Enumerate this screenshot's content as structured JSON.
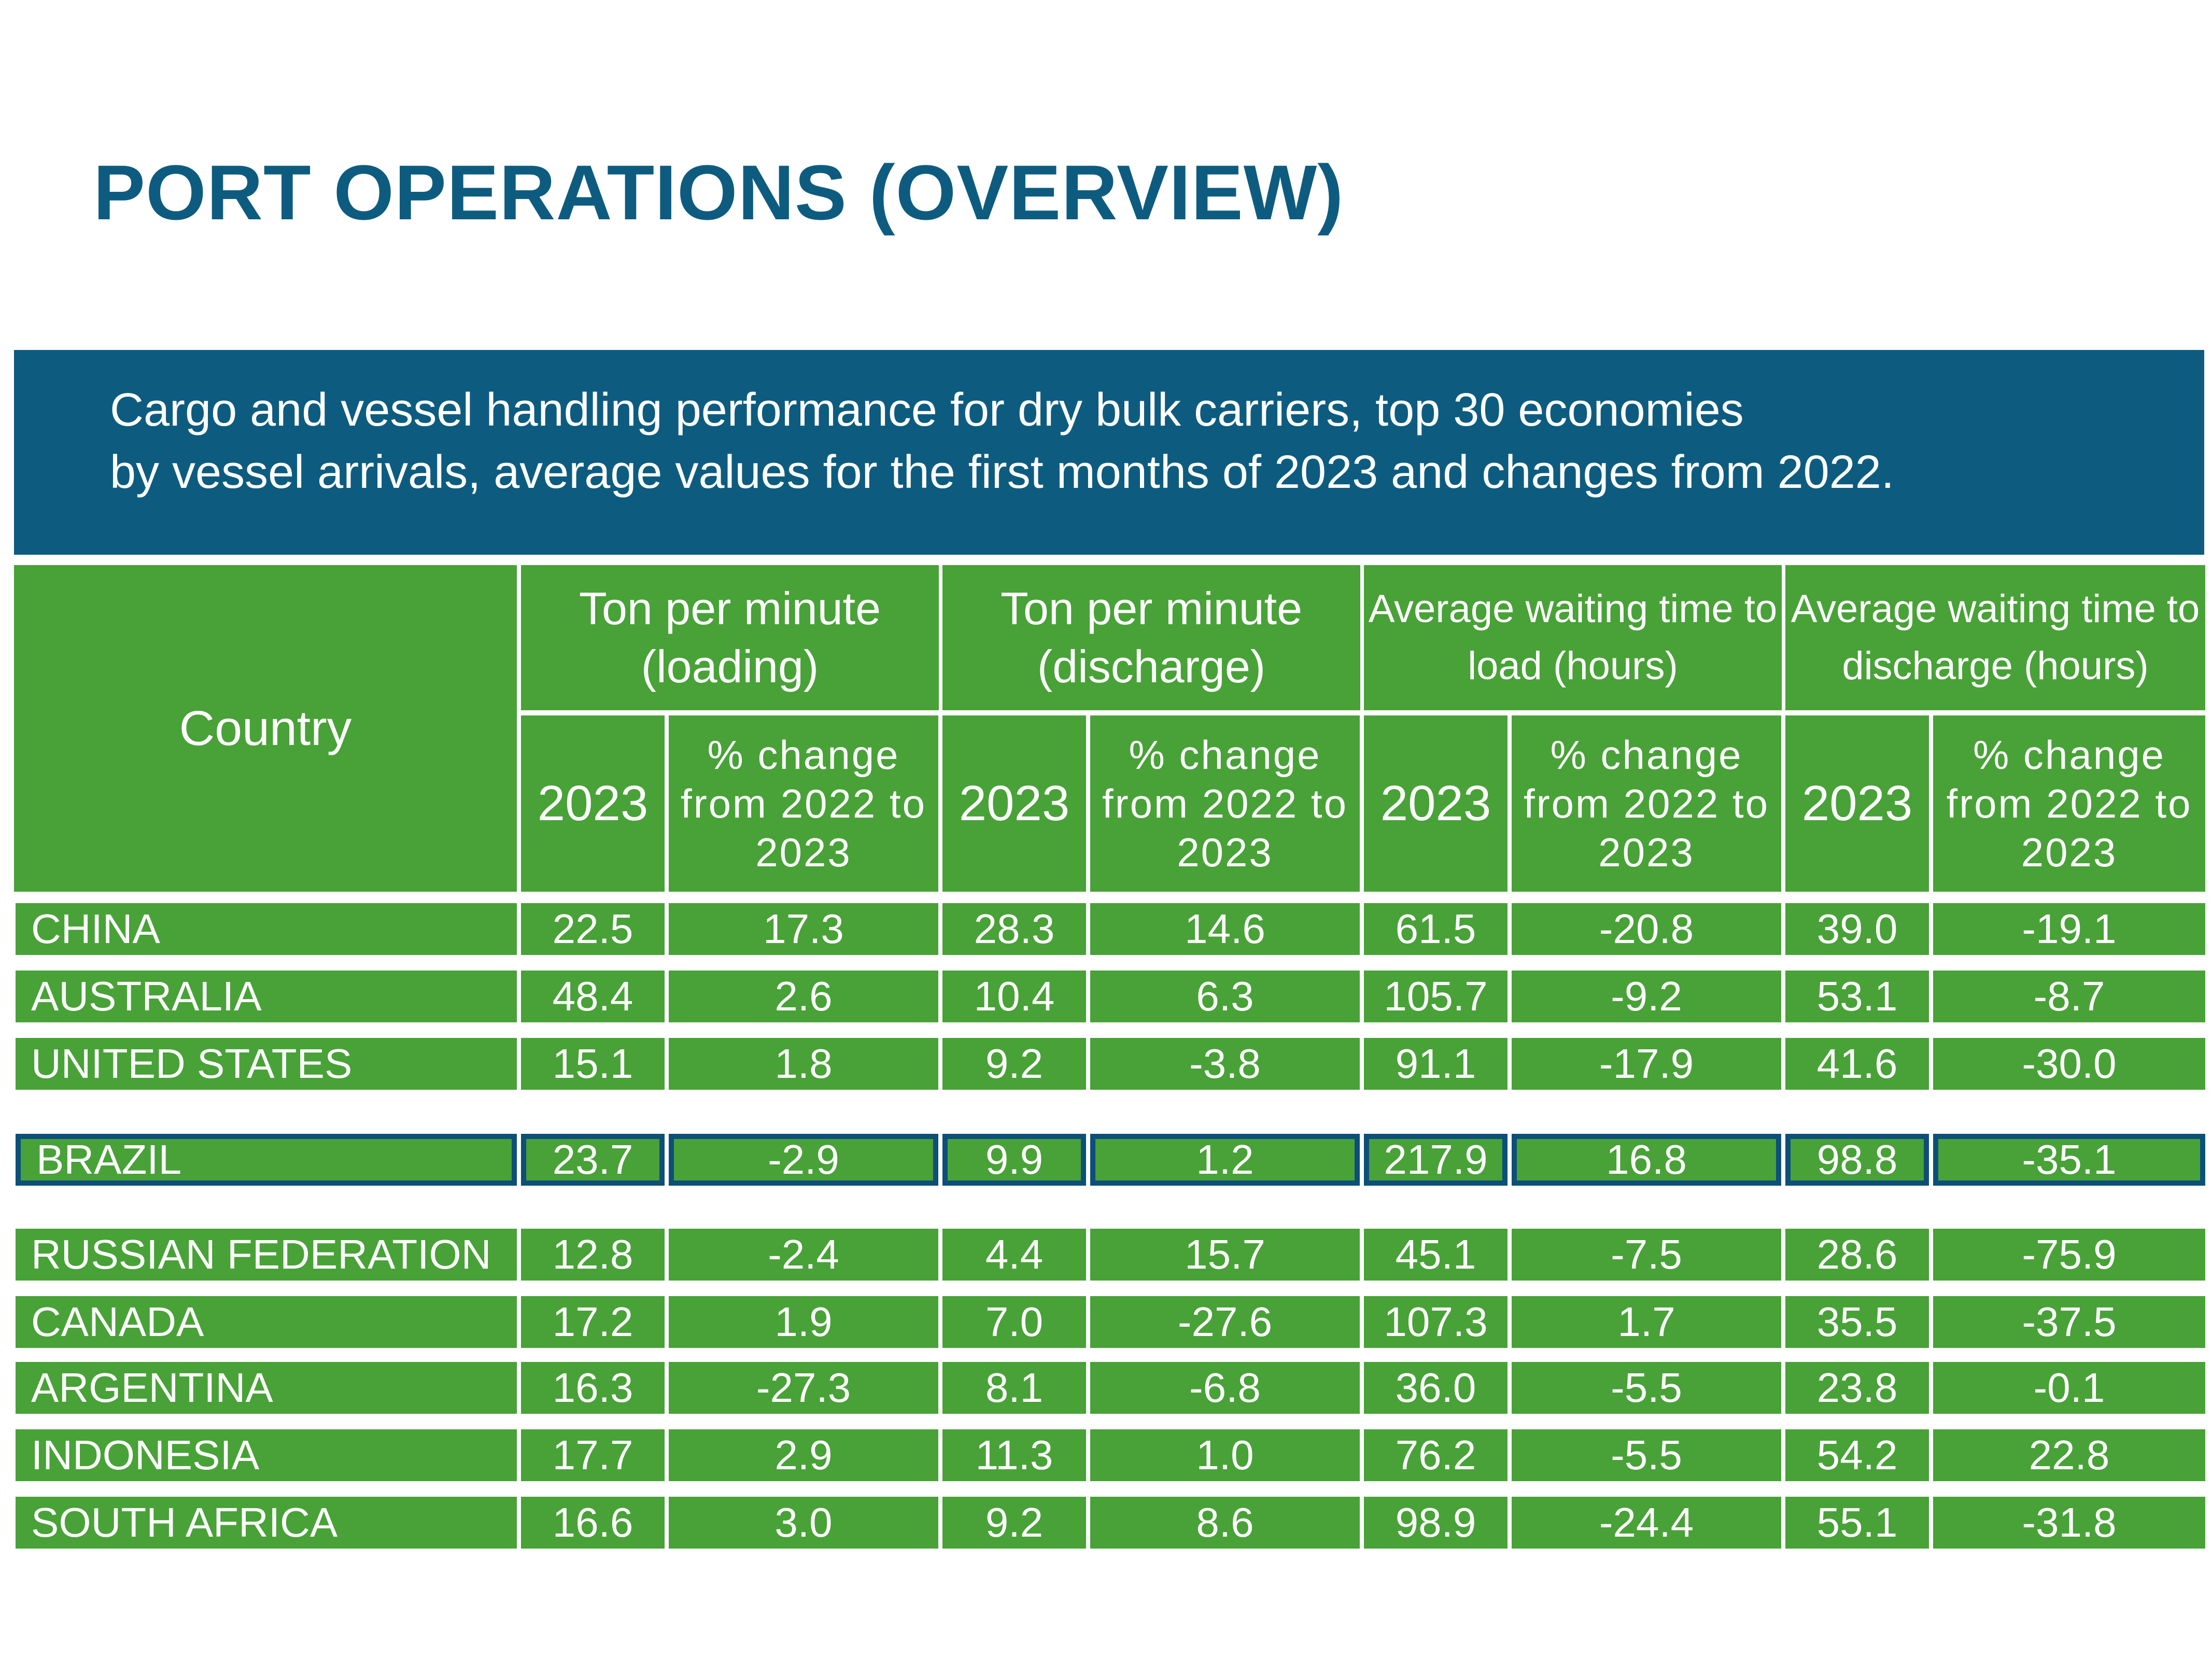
{
  "title": "PORT OPERATIONS (OVERVIEW)",
  "subtitle": {
    "line1": "Cargo and vessel handling performance for dry bulk carriers, top 30 economies",
    "line2": "by vessel arrivals, average values for the first months of 2023 and changes from 2022."
  },
  "table": {
    "country_header": "Country",
    "groups": [
      "Ton per minute (loading)",
      "Ton per minute (discharge)",
      "Average waiting time to load (hours)",
      "Average waiting time to discharge (hours)"
    ],
    "sub_headers": [
      "2023",
      "% change from 2022 to 2023"
    ],
    "highlighted_country": "BRAZIL",
    "rows": [
      {
        "country": "CHINA",
        "values": [
          "22.5",
          "17.3",
          "28.3",
          "14.6",
          "61.5",
          "-20.8",
          "39.0",
          "-19.1"
        ]
      },
      {
        "country": "AUSTRALIA",
        "values": [
          "48.4",
          "2.6",
          "10.4",
          "6.3",
          "105.7",
          "-9.2",
          "53.1",
          "-8.7"
        ]
      },
      {
        "country": "UNITED STATES",
        "values": [
          "15.1",
          "1.8",
          "9.2",
          "-3.8",
          "91.1",
          "-17.9",
          "41.6",
          "-30.0"
        ]
      },
      {
        "country": "BRAZIL",
        "values": [
          "23.7",
          "-2.9",
          "9.9",
          "1.2",
          "217.9",
          "16.8",
          "98.8",
          "-35.1"
        ]
      },
      {
        "country": "RUSSIAN FEDERATION",
        "values": [
          "12.8",
          "-2.4",
          "4.4",
          "15.7",
          "45.1",
          "-7.5",
          "28.6",
          "-75.9"
        ]
      },
      {
        "country": "CANADA",
        "values": [
          "17.2",
          "1.9",
          "7.0",
          "-27.6",
          "107.3",
          "1.7",
          "35.5",
          "-37.5"
        ]
      },
      {
        "country": "ARGENTINA",
        "values": [
          "16.3",
          "-27.3",
          "8.1",
          "-6.8",
          "36.0",
          "-5.5",
          "23.8",
          "-0.1"
        ]
      },
      {
        "country": "INDONESIA",
        "values": [
          "17.7",
          "2.9",
          "11.3",
          "1.0",
          "76.2",
          "-5.5",
          "54.2",
          "22.8"
        ]
      },
      {
        "country": "SOUTH AFRICA",
        "values": [
          "16.6",
          "3.0",
          "9.2",
          "8.6",
          "98.9",
          "-24.4",
          "55.1",
          "-31.8"
        ]
      }
    ]
  },
  "colors": {
    "title": "#0d5c80",
    "banner": "#0d5c80",
    "cell": "#48a237",
    "highlight_border": "#0d4f79"
  }
}
